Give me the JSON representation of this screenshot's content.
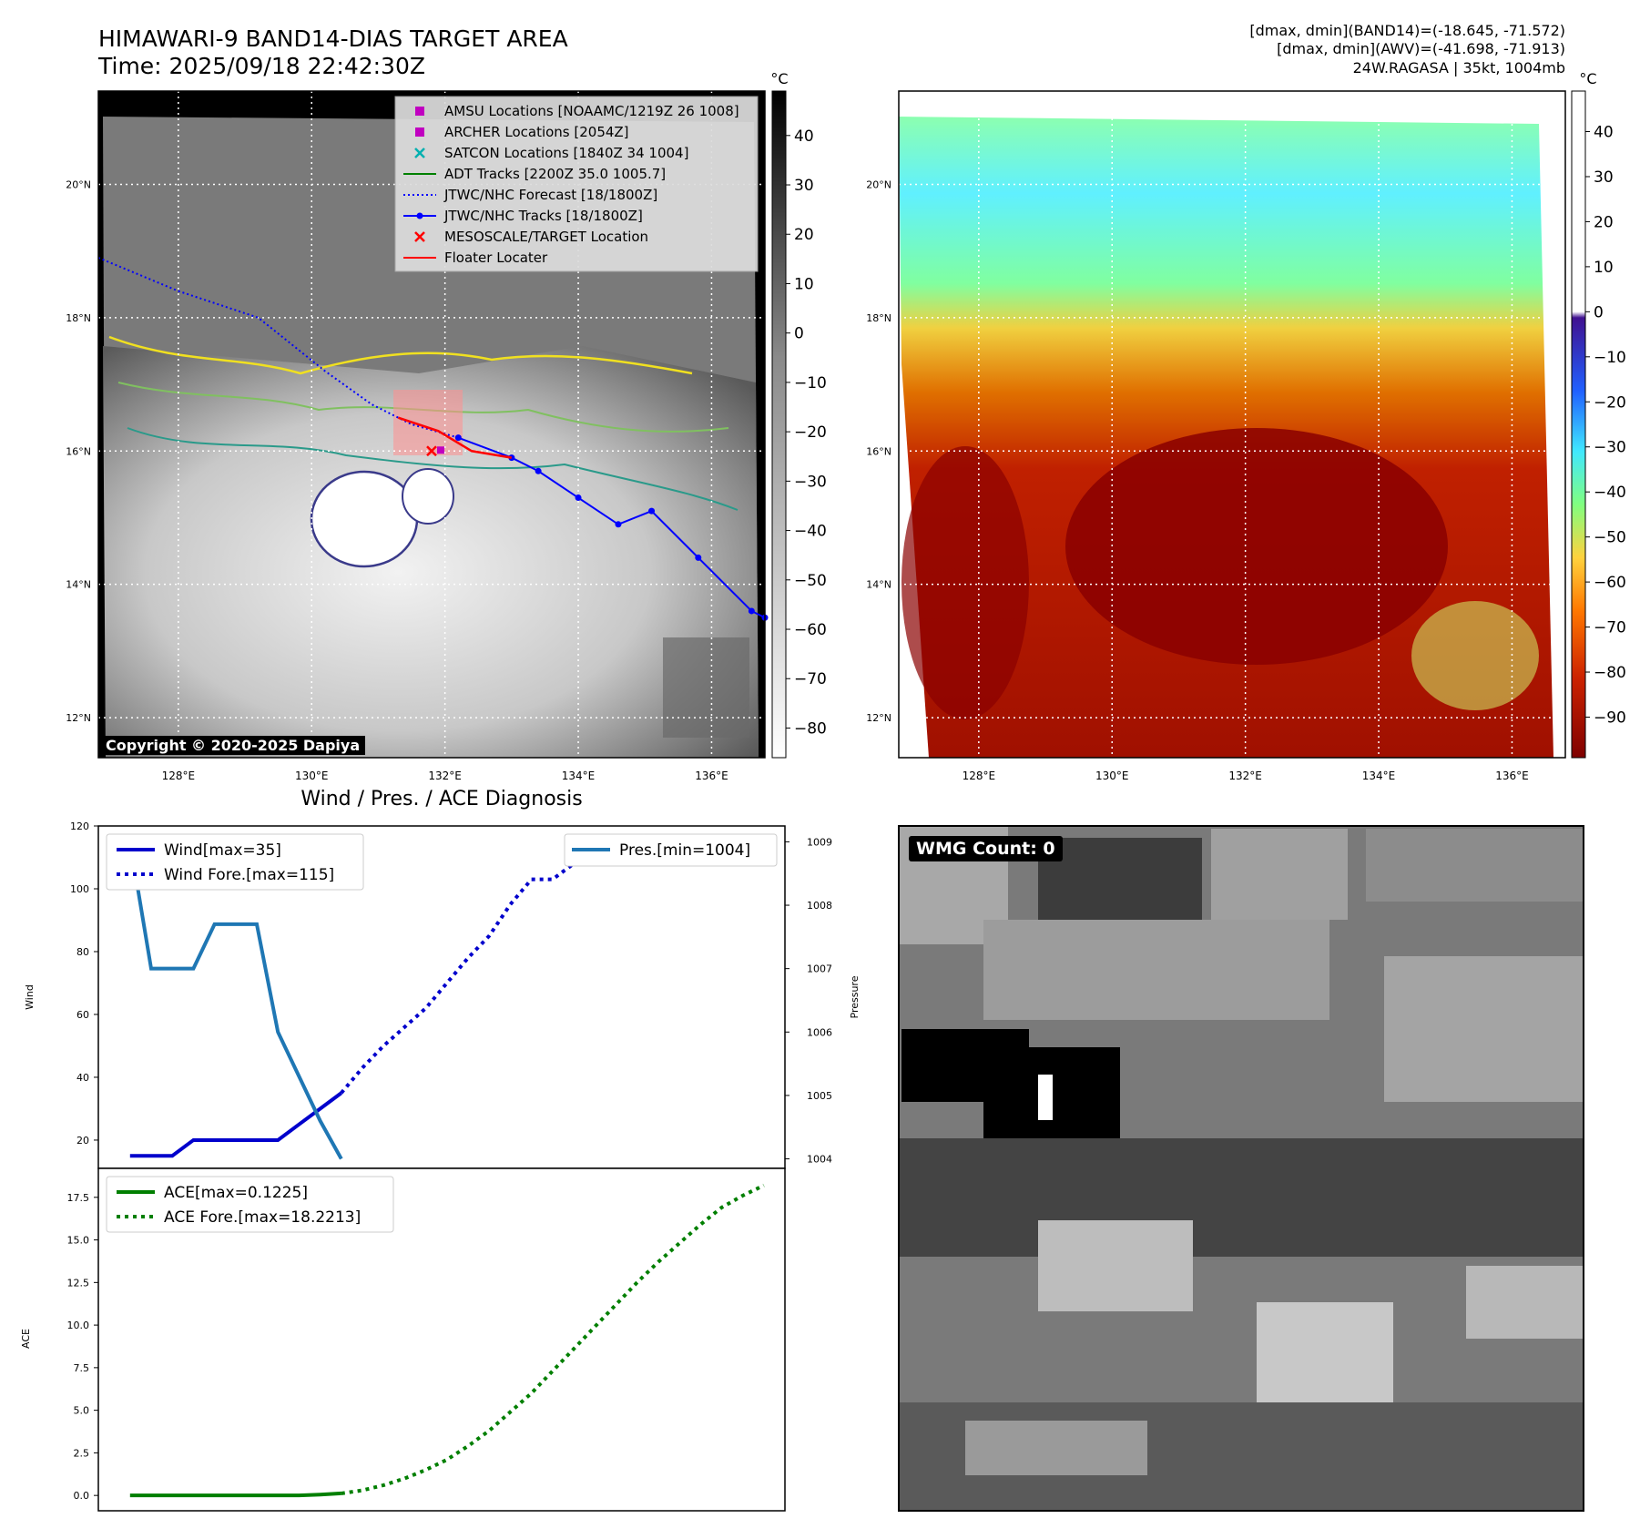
{
  "header": {
    "title_line1": "HIMAWARI-9 BAND14-DIAS TARGET AREA",
    "title_line2": "Time: 2025/09/18 22:42:30Z",
    "info_line1": "[dmax, dmin](BAND14)=(-18.645, -71.572)",
    "info_line2": "[dmax, dmin](AWV)=(-41.698, -71.913)",
    "info_line3": "24W.RAGASA | 35kt, 1004mb"
  },
  "copyright": "Copyright © 2020-2025 Dapiya",
  "wmg_label": "WMG Count: 0",
  "colors": {
    "wind": "#1f77b4",
    "wind_fore": "#0000cc",
    "pres": "#1f77b4",
    "ace": "#007f00",
    "track": "#0000ff",
    "floater": "#ff0000",
    "amsu": "#c000c0",
    "satcon": "#00b0b0",
    "adt": "#008000"
  },
  "map_panel": {
    "x_ticks": [
      "128°E",
      "130°E",
      "132°E",
      "134°E",
      "136°E"
    ],
    "y_ticks": [
      "20°N",
      "18°N",
      "16°N",
      "14°N",
      "12°N"
    ],
    "x_tick_values": [
      128,
      130,
      132,
      134,
      136
    ],
    "y_tick_values": [
      20,
      18,
      16,
      14,
      12
    ],
    "lon_range": [
      126.8,
      136.8
    ],
    "lat_range": [
      11.4,
      21.4
    ],
    "legend": [
      {
        "label": "AMSU Locations [NOAAMC/1219Z 26 1008]",
        "marker": "square",
        "color": "#c000c0"
      },
      {
        "label": "ARCHER Locations [2054Z]",
        "marker": "square",
        "color": "#c000c0"
      },
      {
        "label": "SATCON Locations [1840Z 34 1004]",
        "marker": "x",
        "color": "#00b0b0"
      },
      {
        "label": "ADT Tracks [2200Z 35.0 1005.7]",
        "marker": "line",
        "color": "#008000"
      },
      {
        "label": "JTWC/NHC Forecast [18/1800Z]",
        "marker": "dotted",
        "color": "#0000ff"
      },
      {
        "label": "JTWC/NHC Tracks [18/1800Z]",
        "marker": "line-dot",
        "color": "#0000ff"
      },
      {
        "label": "MESOSCALE/TARGET Location",
        "marker": "x",
        "color": "#ff0000"
      },
      {
        "label": "Floater Locater",
        "marker": "line",
        "color": "#ff0000"
      }
    ],
    "colorbar_unit": "°C",
    "colorbar_ticks": [
      "40",
      "30",
      "20",
      "10",
      "0",
      "−10",
      "−20",
      "−30",
      "−40",
      "−50",
      "−60",
      "−70",
      "−80"
    ],
    "colorbar_tick_values": [
      40,
      30,
      20,
      10,
      0,
      -10,
      -20,
      -30,
      -40,
      -50,
      -60,
      -70,
      -80
    ],
    "colorbar_range": [
      -86,
      49
    ],
    "forecast_track": [
      [
        126.8,
        18.9
      ],
      [
        128.0,
        18.4
      ],
      [
        129.2,
        18.0
      ],
      [
        130.2,
        17.2
      ],
      [
        130.9,
        16.7
      ],
      [
        131.5,
        16.4
      ],
      [
        132.2,
        16.2
      ]
    ],
    "best_track": [
      [
        132.2,
        16.2
      ],
      [
        133.0,
        15.9
      ],
      [
        133.4,
        15.7
      ],
      [
        134.0,
        15.3
      ],
      [
        134.6,
        14.9
      ],
      [
        135.1,
        15.1
      ],
      [
        135.8,
        14.4
      ],
      [
        136.6,
        13.6
      ],
      [
        136.8,
        13.5
      ]
    ],
    "floater_track": [
      [
        131.3,
        16.5
      ],
      [
        131.9,
        16.3
      ],
      [
        132.4,
        16.0
      ],
      [
        133.0,
        15.9
      ]
    ],
    "target": [
      131.8,
      16.0
    ]
  },
  "awv_panel": {
    "x_ticks": [
      "128°E",
      "130°E",
      "132°E",
      "134°E",
      "136°E"
    ],
    "y_ticks": [
      "20°N",
      "18°N",
      "16°N",
      "14°N",
      "12°N"
    ],
    "colorbar_unit": "°C",
    "colorbar_ticks": [
      "40",
      "30",
      "20",
      "10",
      "0",
      "−10",
      "−20",
      "−30",
      "−40",
      "−50",
      "−60",
      "−70",
      "−80",
      "−90"
    ],
    "colorbar_tick_values": [
      40,
      30,
      20,
      10,
      0,
      -10,
      -20,
      -30,
      -40,
      -50,
      -60,
      -70,
      -80,
      -90
    ],
    "colorbar_range": [
      -99,
      49
    ]
  },
  "chart_data": [
    {
      "type": "line",
      "title": "Wind / Pres. / ACE Diagnosis",
      "ylabel": "Wind",
      "ylabel_right": "Pressure",
      "ylim": [
        11,
        120
      ],
      "ylim_right": [
        1003.85,
        1009.25
      ],
      "y_ticks": [
        20,
        40,
        60,
        80,
        100,
        120
      ],
      "y_ticks_right": [
        1004,
        1005,
        1006,
        1007,
        1008,
        1009
      ],
      "xlim": [
        -1.5,
        31
      ],
      "series": [
        {
          "name": "Wind[max=35]",
          "axis": "left",
          "style": "solid",
          "x": [
            0,
            1,
            2,
            3,
            4,
            5,
            6,
            7,
            8,
            9,
            10
          ],
          "values": [
            15,
            15,
            15,
            20,
            20,
            20,
            20,
            20,
            25,
            30,
            35
          ]
        },
        {
          "name": "Wind Fore.[max=115]",
          "axis": "left",
          "style": "dotted",
          "x": [
            10,
            11,
            12,
            13,
            14,
            15,
            16,
            17,
            18,
            19,
            20,
            21,
            22,
            23,
            24,
            25,
            26,
            27,
            28,
            29,
            30
          ],
          "values": [
            35,
            43,
            50,
            56,
            62,
            70,
            78,
            85,
            95,
            103,
            103,
            108,
            112,
            115,
            115,
            115,
            113,
            112,
            112,
            110,
            108
          ]
        },
        {
          "name": "Pres.[min=1004]",
          "axis": "right",
          "style": "solid",
          "x": [
            0,
            1,
            2,
            3,
            4,
            5,
            6,
            7,
            8,
            9,
            10
          ],
          "values": [
            1009,
            1007,
            1007,
            1007,
            1007.7,
            1007.7,
            1007.7,
            1006,
            1005.3,
            1004.6,
            1004
          ]
        }
      ]
    },
    {
      "type": "line",
      "ylabel": "ACE",
      "ylim": [
        -0.9,
        19.2
      ],
      "y_ticks": [
        0.0,
        2.5,
        5.0,
        7.5,
        10.0,
        12.5,
        15.0,
        17.5
      ],
      "y_tick_labels": [
        "0.0",
        "2.5",
        "5.0",
        "7.5",
        "10.0",
        "12.5",
        "15.0",
        "17.5"
      ],
      "xlim": [
        -1.5,
        31
      ],
      "series": [
        {
          "name": "ACE[max=0.1225]",
          "style": "solid",
          "x": [
            0,
            1,
            2,
            3,
            4,
            5,
            6,
            7,
            8,
            9,
            10
          ],
          "values": [
            0,
            0,
            0,
            0,
            0,
            0,
            0,
            0,
            0,
            0.05,
            0.12
          ]
        },
        {
          "name": "ACE Fore.[max=18.2213]",
          "style": "dotted",
          "x": [
            10,
            11,
            12,
            13,
            14,
            15,
            16,
            17,
            18,
            19,
            20,
            21,
            22,
            23,
            24,
            25,
            26,
            27,
            28,
            29,
            30
          ],
          "values": [
            0.12,
            0.3,
            0.6,
            1.0,
            1.5,
            2.1,
            2.9,
            3.8,
            4.9,
            6.0,
            7.3,
            8.6,
            9.9,
            11.2,
            12.5,
            13.7,
            14.8,
            15.9,
            16.9,
            17.6,
            18.2
          ]
        }
      ]
    }
  ]
}
